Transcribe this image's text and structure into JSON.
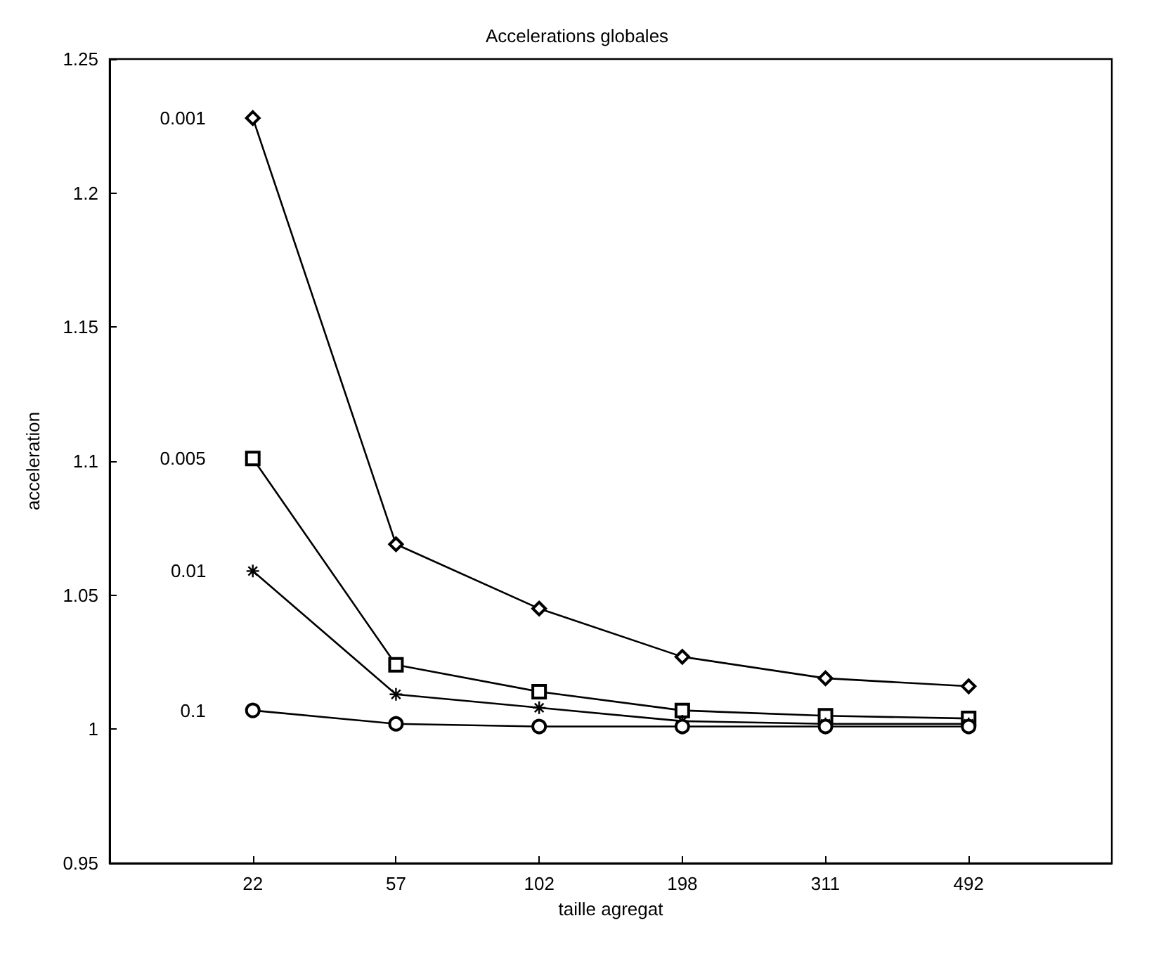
{
  "chart_data": {
    "type": "line",
    "title": "Accelerations globales",
    "xlabel": "taille agregat",
    "ylabel": "acceleration",
    "categories": [
      "22",
      "57",
      "102",
      "198",
      "311",
      "492"
    ],
    "ylim": [
      0.95,
      1.25
    ],
    "yticks": [
      0.95,
      1,
      1.05,
      1.1,
      1.15,
      1.2,
      1.25
    ],
    "grid": false,
    "legend": false,
    "line_style": "solid",
    "series": [
      {
        "name": "0.001",
        "color": "#000000",
        "marker": "diamond",
        "values": [
          1.228,
          1.069,
          1.045,
          1.027,
          1.019,
          1.016
        ]
      },
      {
        "name": "0.005",
        "color": "#000000",
        "marker": "square",
        "values": [
          1.101,
          1.024,
          1.014,
          1.007,
          1.005,
          1.004
        ]
      },
      {
        "name": "0.01",
        "color": "#000000",
        "marker": "cross",
        "values": [
          1.059,
          1.013,
          1.008,
          1.003,
          1.002,
          1.002
        ]
      },
      {
        "name": "0.1",
        "color": "#000000",
        "marker": "circle",
        "values": [
          1.007,
          1.002,
          1.001,
          1.001,
          1.001,
          1.001
        ]
      }
    ]
  }
}
